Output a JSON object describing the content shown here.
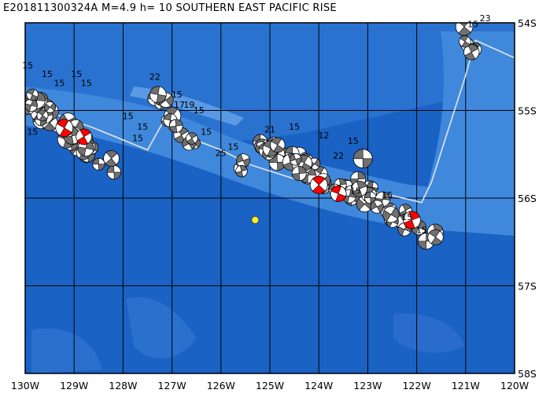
{
  "title": "E201811300324A  M=4.9  h= 10  SOUTHERN EAST PACIFIC RISE",
  "map": {
    "lon_range": [
      -130,
      -120
    ],
    "lat_range": [
      -58,
      -54
    ],
    "lon_labels": [
      "130W",
      "129W",
      "128W",
      "127W",
      "126W",
      "125W",
      "124W",
      "123W",
      "122W",
      "121W",
      "120W"
    ],
    "lat_labels": [
      "54S",
      "55S",
      "56S",
      "57S",
      "58S"
    ],
    "colors": {
      "deep": "#1a62c4",
      "mid": "#2a72d0",
      "ridge": "#3f88dc",
      "grid": "#000000",
      "plate_line": "#d6dce6",
      "event": "#ffee22",
      "cmt_fill": "#707070",
      "cmt_fill_highlight": "#ff0000"
    },
    "plate_boundary": [
      [
        -130,
        -55.0
      ],
      [
        -129.5,
        -55.02
      ],
      [
        -128.6,
        -55.2
      ],
      [
        -127.5,
        -55.45
      ],
      [
        -127.2,
        -55.15
      ],
      [
        -126.7,
        -55.3
      ],
      [
        -126.0,
        -55.45
      ],
      [
        -125.4,
        -55.62
      ],
      [
        -124.5,
        -55.78
      ],
      [
        -123.3,
        -55.9
      ],
      [
        -122.5,
        -55.97
      ],
      [
        -121.9,
        -56.05
      ],
      [
        -121.7,
        -55.82
      ],
      [
        -121.0,
        -54.6
      ],
      [
        -120.8,
        -54.2
      ],
      [
        -120.0,
        -54.4
      ]
    ],
    "event": {
      "lon": -125.3,
      "lat": -56.25
    },
    "labels": [
      {
        "t": "15",
        "lon": -129.95,
        "lat": -54.52
      },
      {
        "t": "15",
        "lon": -129.55,
        "lat": -54.62
      },
      {
        "t": "15",
        "lon": -129.3,
        "lat": -54.72
      },
      {
        "t": "15",
        "lon": -128.95,
        "lat": -54.62
      },
      {
        "t": "15",
        "lon": -128.75,
        "lat": -54.72
      },
      {
        "t": "15",
        "lon": -129.85,
        "lat": -55.28
      },
      {
        "t": "15",
        "lon": -127.9,
        "lat": -55.1
      },
      {
        "t": "15",
        "lon": -127.6,
        "lat": -55.22
      },
      {
        "t": "15",
        "lon": -127.7,
        "lat": -55.35
      },
      {
        "t": "22",
        "lon": -127.35,
        "lat": -54.65
      },
      {
        "t": "15",
        "lon": -126.9,
        "lat": -54.85
      },
      {
        "t": "17",
        "lon": -126.85,
        "lat": -54.97
      },
      {
        "t": "19",
        "lon": -126.65,
        "lat": -54.97
      },
      {
        "t": "15",
        "lon": -126.45,
        "lat": -55.03
      },
      {
        "t": "15",
        "lon": -126.3,
        "lat": -55.28
      },
      {
        "t": "25",
        "lon": -126.0,
        "lat": -55.52
      },
      {
        "t": "15",
        "lon": -125.75,
        "lat": -55.45
      },
      {
        "t": "21",
        "lon": -125.0,
        "lat": -55.25
      },
      {
        "t": "15",
        "lon": -124.5,
        "lat": -55.22
      },
      {
        "t": "12",
        "lon": -123.9,
        "lat": -55.32
      },
      {
        "t": "15",
        "lon": -123.3,
        "lat": -55.38
      },
      {
        "t": "22",
        "lon": -123.6,
        "lat": -55.55
      },
      {
        "t": "15",
        "lon": -123.25,
        "lat": -55.95
      },
      {
        "t": "15",
        "lon": -122.6,
        "lat": -56.0
      },
      {
        "t": "15",
        "lon": -122.2,
        "lat": -56.25
      },
      {
        "t": "15",
        "lon": -121.9,
        "lat": -56.4
      },
      {
        "t": "15",
        "lon": -120.85,
        "lat": -54.05
      },
      {
        "t": "23",
        "lon": -120.6,
        "lat": -53.98
      }
    ]
  }
}
